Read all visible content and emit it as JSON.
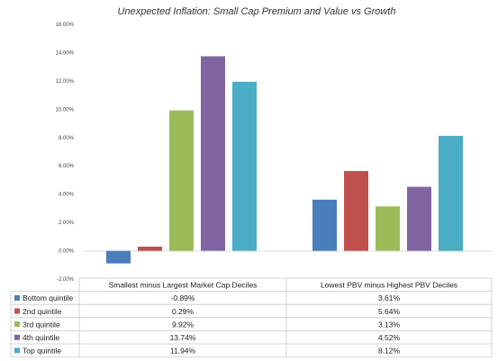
{
  "chart_data": {
    "type": "bar",
    "title": "Unexpected Inflation: Small Cap Premium and Value vs Growth",
    "categories": [
      "Smallest minus Largest Market Cap Deciles",
      "Lowest PBV minus Highest PBV Deciles"
    ],
    "series": [
      {
        "name": "Bottom quintile",
        "values": [
          -0.89,
          3.61
        ],
        "labels": [
          "-0.89%",
          "3.61%"
        ],
        "color": "#4a7ebb"
      },
      {
        "name": "2nd quintile",
        "values": [
          0.29,
          5.64
        ],
        "labels": [
          "0.29%",
          "5.64%"
        ],
        "color": "#c0504d"
      },
      {
        "name": "3rd quintile",
        "values": [
          9.92,
          3.13
        ],
        "labels": [
          "9.92%",
          "3.13%"
        ],
        "color": "#9bbb59"
      },
      {
        "name": "4th quintile",
        "values": [
          13.74,
          4.52
        ],
        "labels": [
          "13.74%",
          "4.52%"
        ],
        "color": "#8064a2"
      },
      {
        "name": "Top quintile",
        "values": [
          11.94,
          8.12
        ],
        "labels": [
          "11.94%",
          "8.12%"
        ],
        "color": "#4bacc6"
      }
    ],
    "ylim": [
      -2,
      16
    ],
    "yticks": [
      "-2.00%",
      "0.00%",
      "2.00%",
      "4.00%",
      "6.00%",
      "8.00%",
      "10.00%",
      "12.00%",
      "14.00%",
      "16.00%"
    ],
    "grid": false,
    "legend": "data-table"
  }
}
